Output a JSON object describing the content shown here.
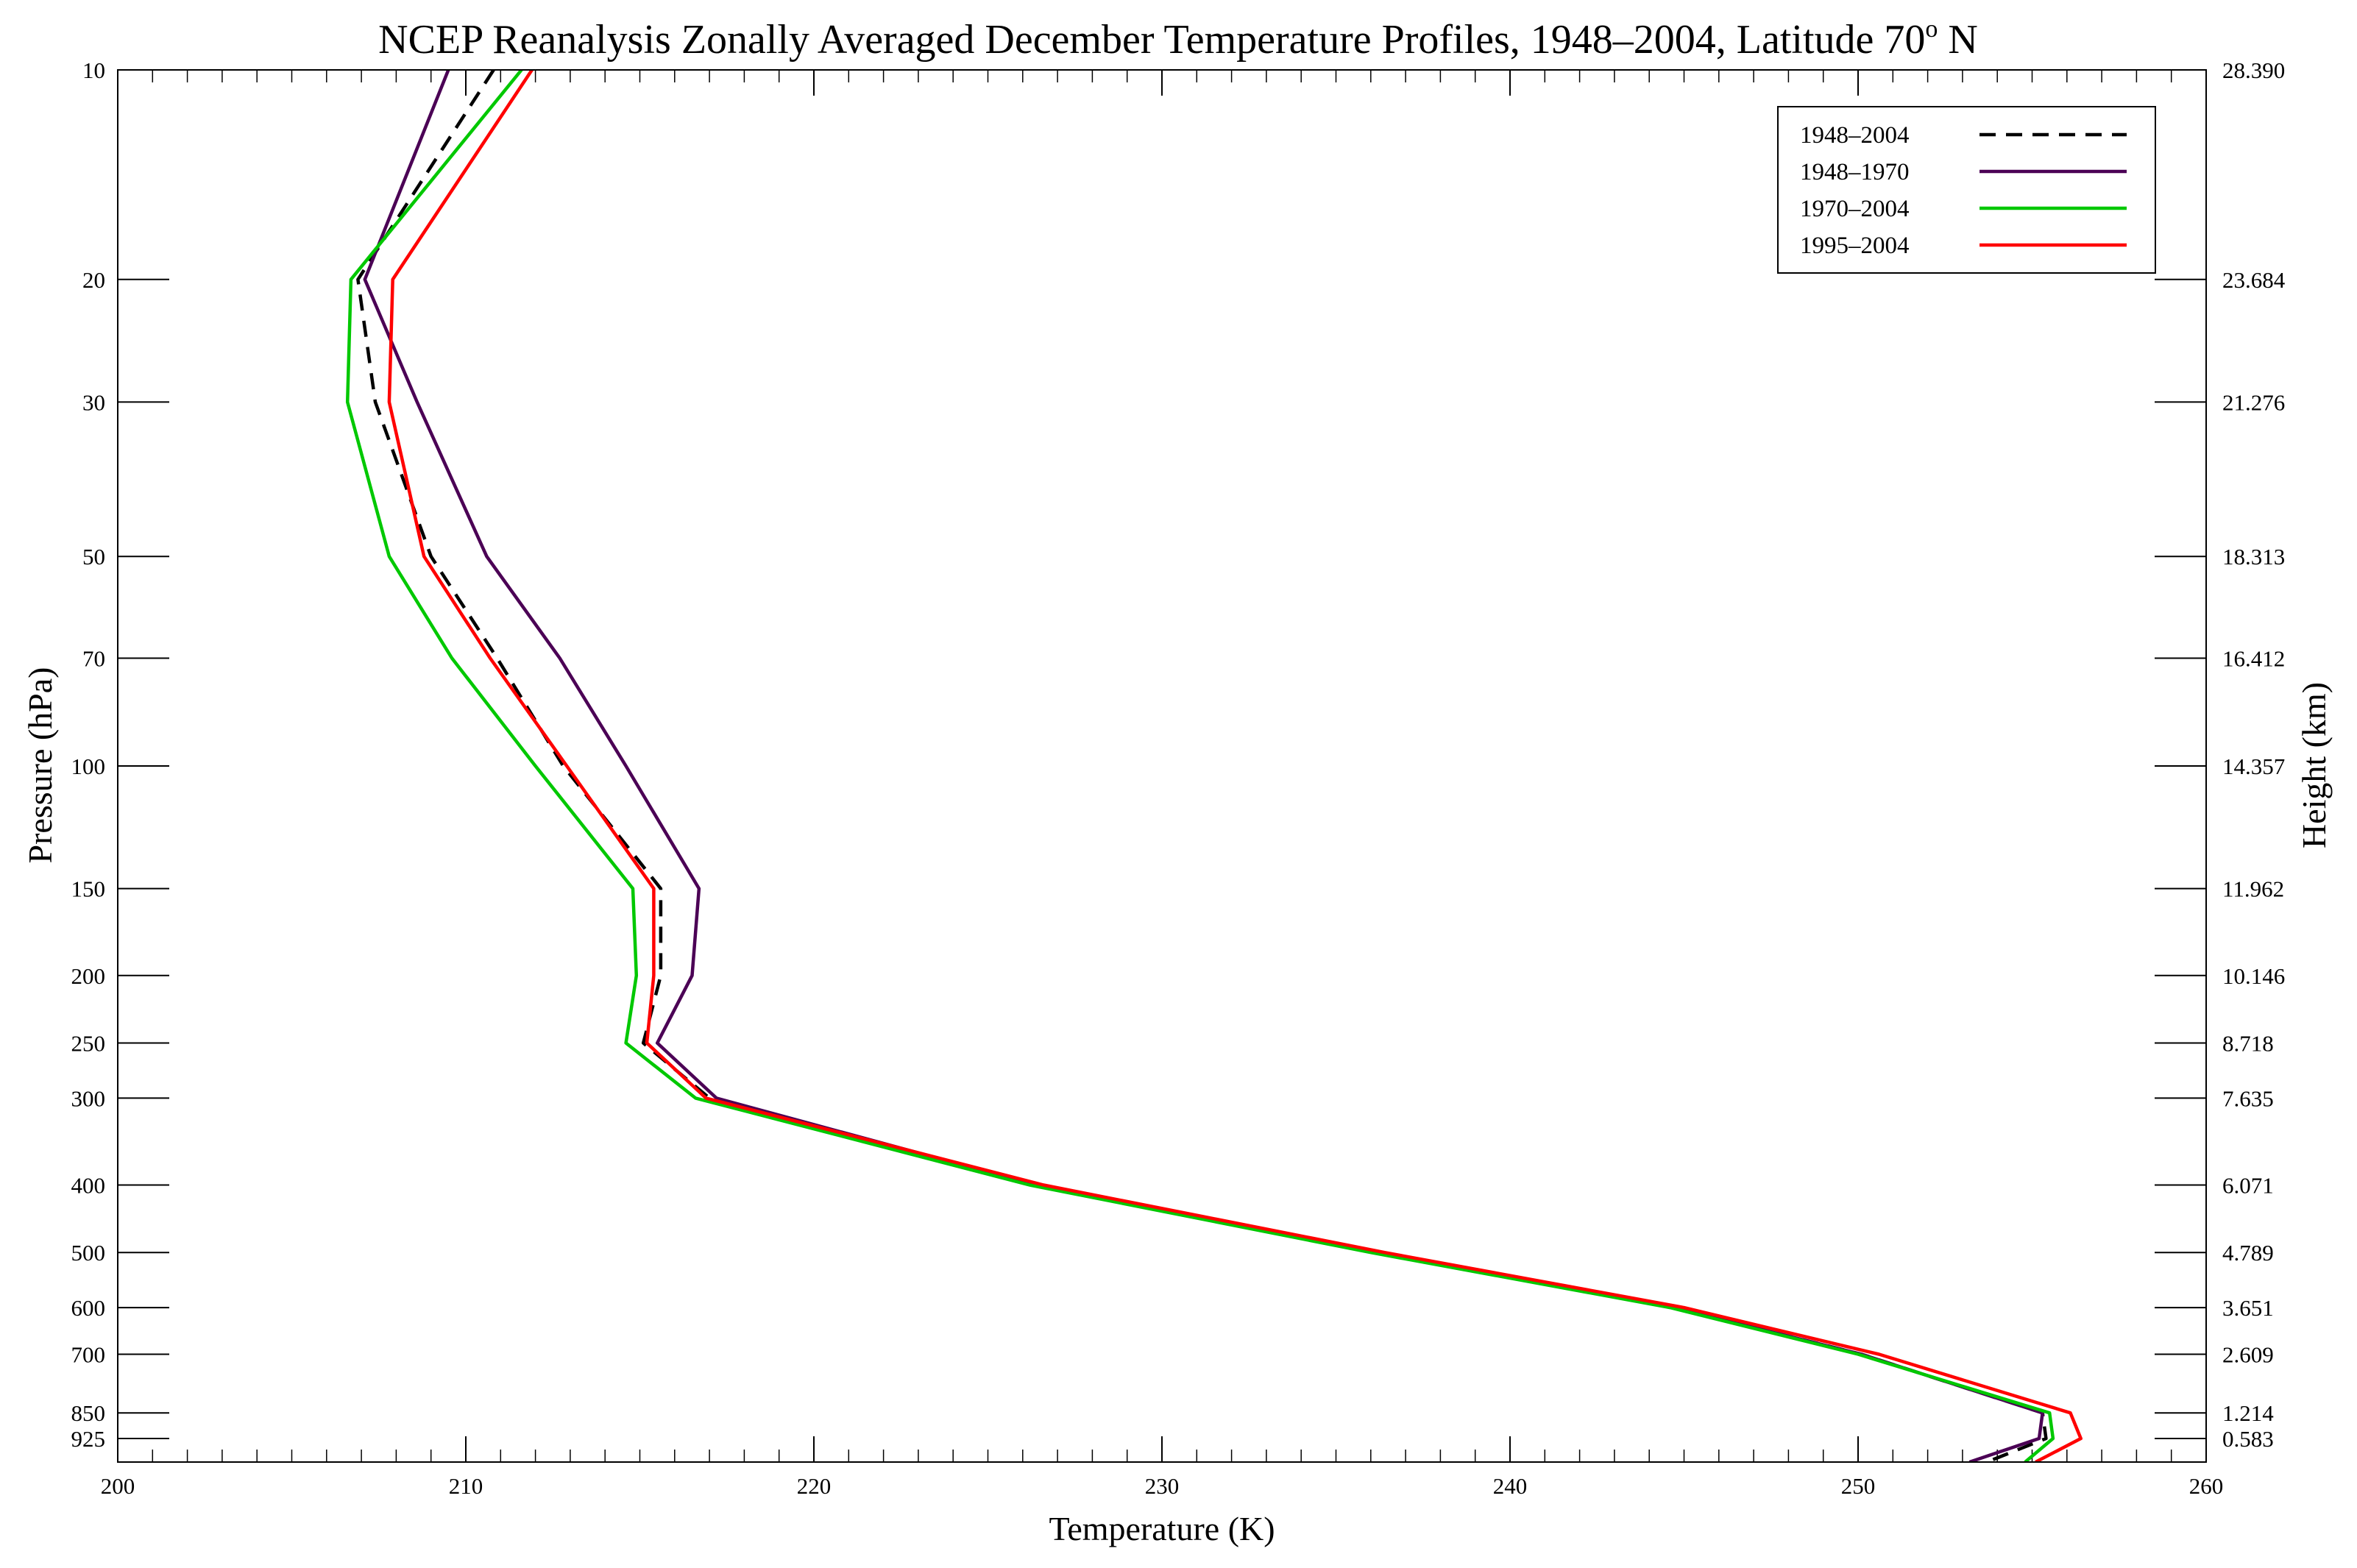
{
  "chart_data": {
    "type": "line",
    "title": {
      "main": "NCEP Reanalysis Zonally Averaged December Temperature Profiles, 1948–2004, Latitude 70",
      "sup": "o",
      "end": " N"
    },
    "xlabel": "Temperature (K)",
    "ylabel": "Pressure (hPa)",
    "y2label": "Height (km)",
    "xlim": [
      200,
      260
    ],
    "ylim": [
      1000,
      10
    ],
    "yscale": "log",
    "x_major_ticks": [
      200,
      210,
      220,
      230,
      240,
      250,
      260
    ],
    "x_tick_labels": [
      "200",
      "210",
      "220",
      "230",
      "240",
      "250",
      "260"
    ],
    "x_minor_step": 1,
    "pressure_levels": [
      10,
      20,
      30,
      50,
      70,
      100,
      150,
      200,
      250,
      300,
      400,
      500,
      600,
      700,
      850,
      925
    ],
    "pressure_labels": [
      "10",
      "20",
      "30",
      "50",
      "70",
      "100",
      "150",
      "200",
      "250",
      "300",
      "400",
      "500",
      "600",
      "700",
      "850",
      "925"
    ],
    "height_labels": [
      "28.390",
      "23.684",
      "21.276",
      "18.313",
      "16.412",
      "14.357",
      "11.962",
      "10.146",
      "8.718",
      "7.635",
      "6.071",
      "4.789",
      "3.651",
      "2.609",
      "1.214",
      "0.583"
    ],
    "grid": false,
    "legend_position": "top-right",
    "series": [
      {
        "name": "1948–2004",
        "color": "#000000",
        "dash": "dashed",
        "points": [
          [
            210.8,
            10
          ],
          [
            206.9,
            20
          ],
          [
            207.4,
            30
          ],
          [
            209.0,
            50
          ],
          [
            210.9,
            70
          ],
          [
            212.8,
            100
          ],
          [
            215.6,
            150
          ],
          [
            215.6,
            200
          ],
          [
            215.1,
            250
          ],
          [
            217.0,
            300
          ],
          [
            226.4,
            400
          ],
          [
            236.3,
            500
          ],
          [
            244.7,
            600
          ],
          [
            250.1,
            700
          ],
          [
            255.3,
            850
          ],
          [
            255.4,
            925
          ],
          [
            253.7,
            1000
          ]
        ]
      },
      {
        "name": "1948–1970",
        "color": "#4b0055",
        "dash": "solid",
        "points": [
          [
            209.5,
            10
          ],
          [
            207.1,
            20
          ],
          [
            208.6,
            30
          ],
          [
            210.6,
            50
          ],
          [
            212.7,
            70
          ],
          [
            214.6,
            100
          ],
          [
            216.7,
            150
          ],
          [
            216.5,
            200
          ],
          [
            215.5,
            250
          ],
          [
            217.2,
            300
          ],
          [
            226.4,
            400
          ],
          [
            236.1,
            500
          ],
          [
            244.7,
            600
          ],
          [
            250.1,
            700
          ],
          [
            255.3,
            850
          ],
          [
            255.2,
            925
          ],
          [
            253.2,
            1000
          ]
        ]
      },
      {
        "name": "1970–2004",
        "color": "#00c800",
        "dash": "solid",
        "points": [
          [
            211.6,
            10
          ],
          [
            206.7,
            20
          ],
          [
            206.6,
            30
          ],
          [
            207.8,
            50
          ],
          [
            209.6,
            70
          ],
          [
            212.0,
            100
          ],
          [
            214.8,
            150
          ],
          [
            214.9,
            200
          ],
          [
            214.6,
            250
          ],
          [
            216.6,
            300
          ],
          [
            226.2,
            400
          ],
          [
            236.0,
            500
          ],
          [
            244.6,
            600
          ],
          [
            250.0,
            700
          ],
          [
            255.5,
            850
          ],
          [
            255.6,
            925
          ],
          [
            254.8,
            1000
          ]
        ]
      },
      {
        "name": "1995–2004",
        "color": "#ff0000",
        "dash": "solid",
        "points": [
          [
            211.9,
            10
          ],
          [
            207.9,
            20
          ],
          [
            207.8,
            30
          ],
          [
            208.8,
            50
          ],
          [
            210.7,
            70
          ],
          [
            212.9,
            100
          ],
          [
            215.4,
            150
          ],
          [
            215.4,
            200
          ],
          [
            215.2,
            250
          ],
          [
            216.9,
            300
          ],
          [
            226.6,
            400
          ],
          [
            236.4,
            500
          ],
          [
            245.0,
            600
          ],
          [
            250.6,
            700
          ],
          [
            256.1,
            850
          ],
          [
            256.4,
            925
          ],
          [
            255.1,
            1000
          ]
        ]
      }
    ]
  }
}
